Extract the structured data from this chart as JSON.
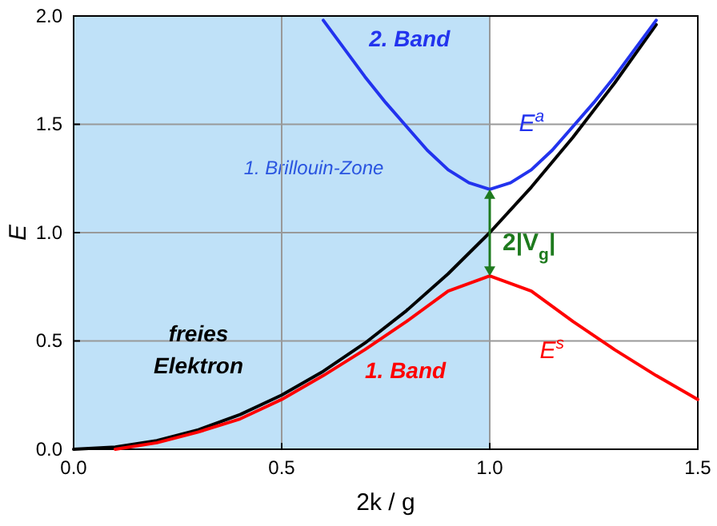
{
  "chart_data": {
    "type": "line",
    "xlabel": "2k / g",
    "ylabel": "E",
    "xlim": [
      0,
      1.5
    ],
    "ylim": [
      0,
      2
    ],
    "xticks": [
      {
        "value": 0,
        "label": "0.0"
      },
      0.5,
      {
        "value": 1,
        "label": "1.0"
      },
      1.5
    ],
    "yticks": [
      {
        "value": 0,
        "label": "0.0"
      },
      0.5,
      {
        "value": 1,
        "label": "1.0"
      },
      1.5,
      {
        "value": 2,
        "label": "2.0"
      }
    ],
    "grid": true,
    "marker": "none",
    "line_style": "solid",
    "bands": [
      {
        "axis": "x",
        "from": 0,
        "to": 1,
        "label": "1. Brillouin-Zone",
        "color": "#bfe1f8"
      }
    ],
    "series": [
      {
        "name": "freies Elektron",
        "color": "#000000",
        "x": [
          0,
          0.1,
          0.2,
          0.3,
          0.4,
          0.5,
          0.6,
          0.7,
          0.8,
          0.9,
          1.0,
          1.1,
          1.2,
          1.3,
          1.4
        ],
        "values": [
          0,
          0.01,
          0.04,
          0.09,
          0.16,
          0.25,
          0.36,
          0.49,
          0.64,
          0.81,
          1.0,
          1.21,
          1.44,
          1.69,
          1.96
        ]
      },
      {
        "name": "1. Band",
        "color": "#ff0000",
        "x": [
          0.1,
          0.2,
          0.3,
          0.4,
          0.5,
          0.6,
          0.7,
          0.8,
          0.9,
          1.0,
          1.1,
          1.2,
          1.3,
          1.4,
          1.5
        ],
        "values": [
          0.0,
          0.03,
          0.08,
          0.14,
          0.23,
          0.34,
          0.46,
          0.59,
          0.73,
          0.8,
          0.73,
          0.59,
          0.46,
          0.34,
          0.23
        ]
      },
      {
        "name": "2. Band",
        "color": "#2233ee",
        "x": [
          0.6,
          0.65,
          0.7,
          0.75,
          0.8,
          0.85,
          0.9,
          0.95,
          1.0,
          1.05,
          1.1,
          1.15,
          1.2,
          1.25,
          1.3,
          1.35,
          1.4
        ],
        "values": [
          1.98,
          1.85,
          1.72,
          1.6,
          1.49,
          1.38,
          1.29,
          1.23,
          1.2,
          1.23,
          1.29,
          1.38,
          1.49,
          1.6,
          1.72,
          1.85,
          1.98
        ]
      }
    ],
    "annotations": [
      "E$^{a}$",
      "E$^{s}$",
      {
        "text": "2|V$_{g}$|",
        "x": 1.0,
        "y": 1.0
      }
    ]
  }
}
